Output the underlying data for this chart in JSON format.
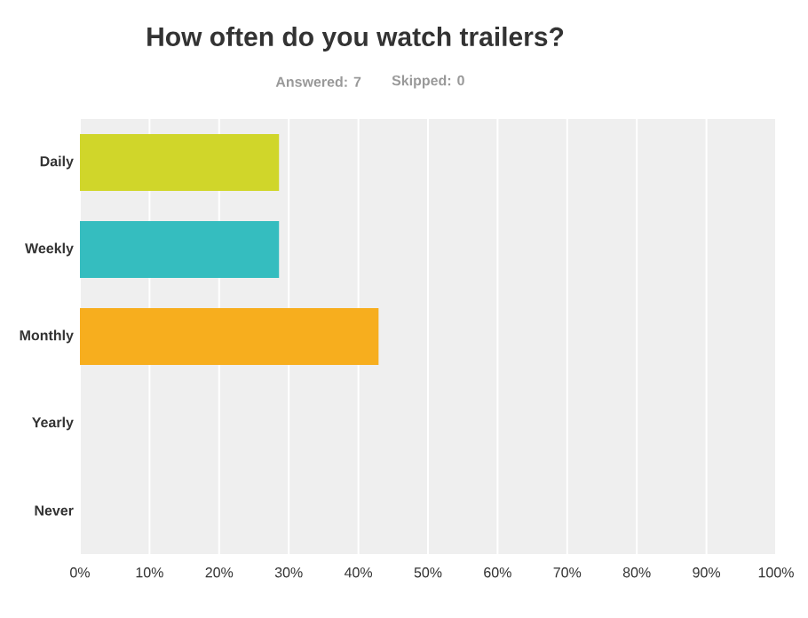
{
  "chart_data": {
    "type": "bar",
    "orientation": "horizontal",
    "title": "How often do you watch trailers?",
    "subtitle": "Answered: 7",
    "annotations": [
      "Skipped: 0"
    ],
    "categories": [
      "Daily",
      "Weekly",
      "Monthly",
      "Yearly",
      "Never"
    ],
    "values": [
      28.6,
      28.6,
      42.9,
      0,
      0
    ],
    "colors": [
      "#d0d62a",
      "#35bdbf",
      "#f7ae1e",
      "#9bc3e6",
      "#b8a0d0"
    ],
    "xlim": [
      0,
      100
    ],
    "xticks": [
      {
        "value": 0,
        "label": "0%"
      },
      {
        "value": 10,
        "label": "10%"
      },
      {
        "value": 20,
        "label": "20%"
      },
      {
        "value": 30,
        "label": "30%"
      },
      {
        "value": 40,
        "label": "40%"
      },
      {
        "value": 50,
        "label": "50%"
      },
      {
        "value": 60,
        "label": "60%"
      },
      {
        "value": 70,
        "label": "70%"
      },
      {
        "value": 80,
        "label": "80%"
      },
      {
        "value": 90,
        "label": "90%"
      },
      {
        "value": 100,
        "label": "100%"
      }
    ],
    "grid": "x"
  }
}
